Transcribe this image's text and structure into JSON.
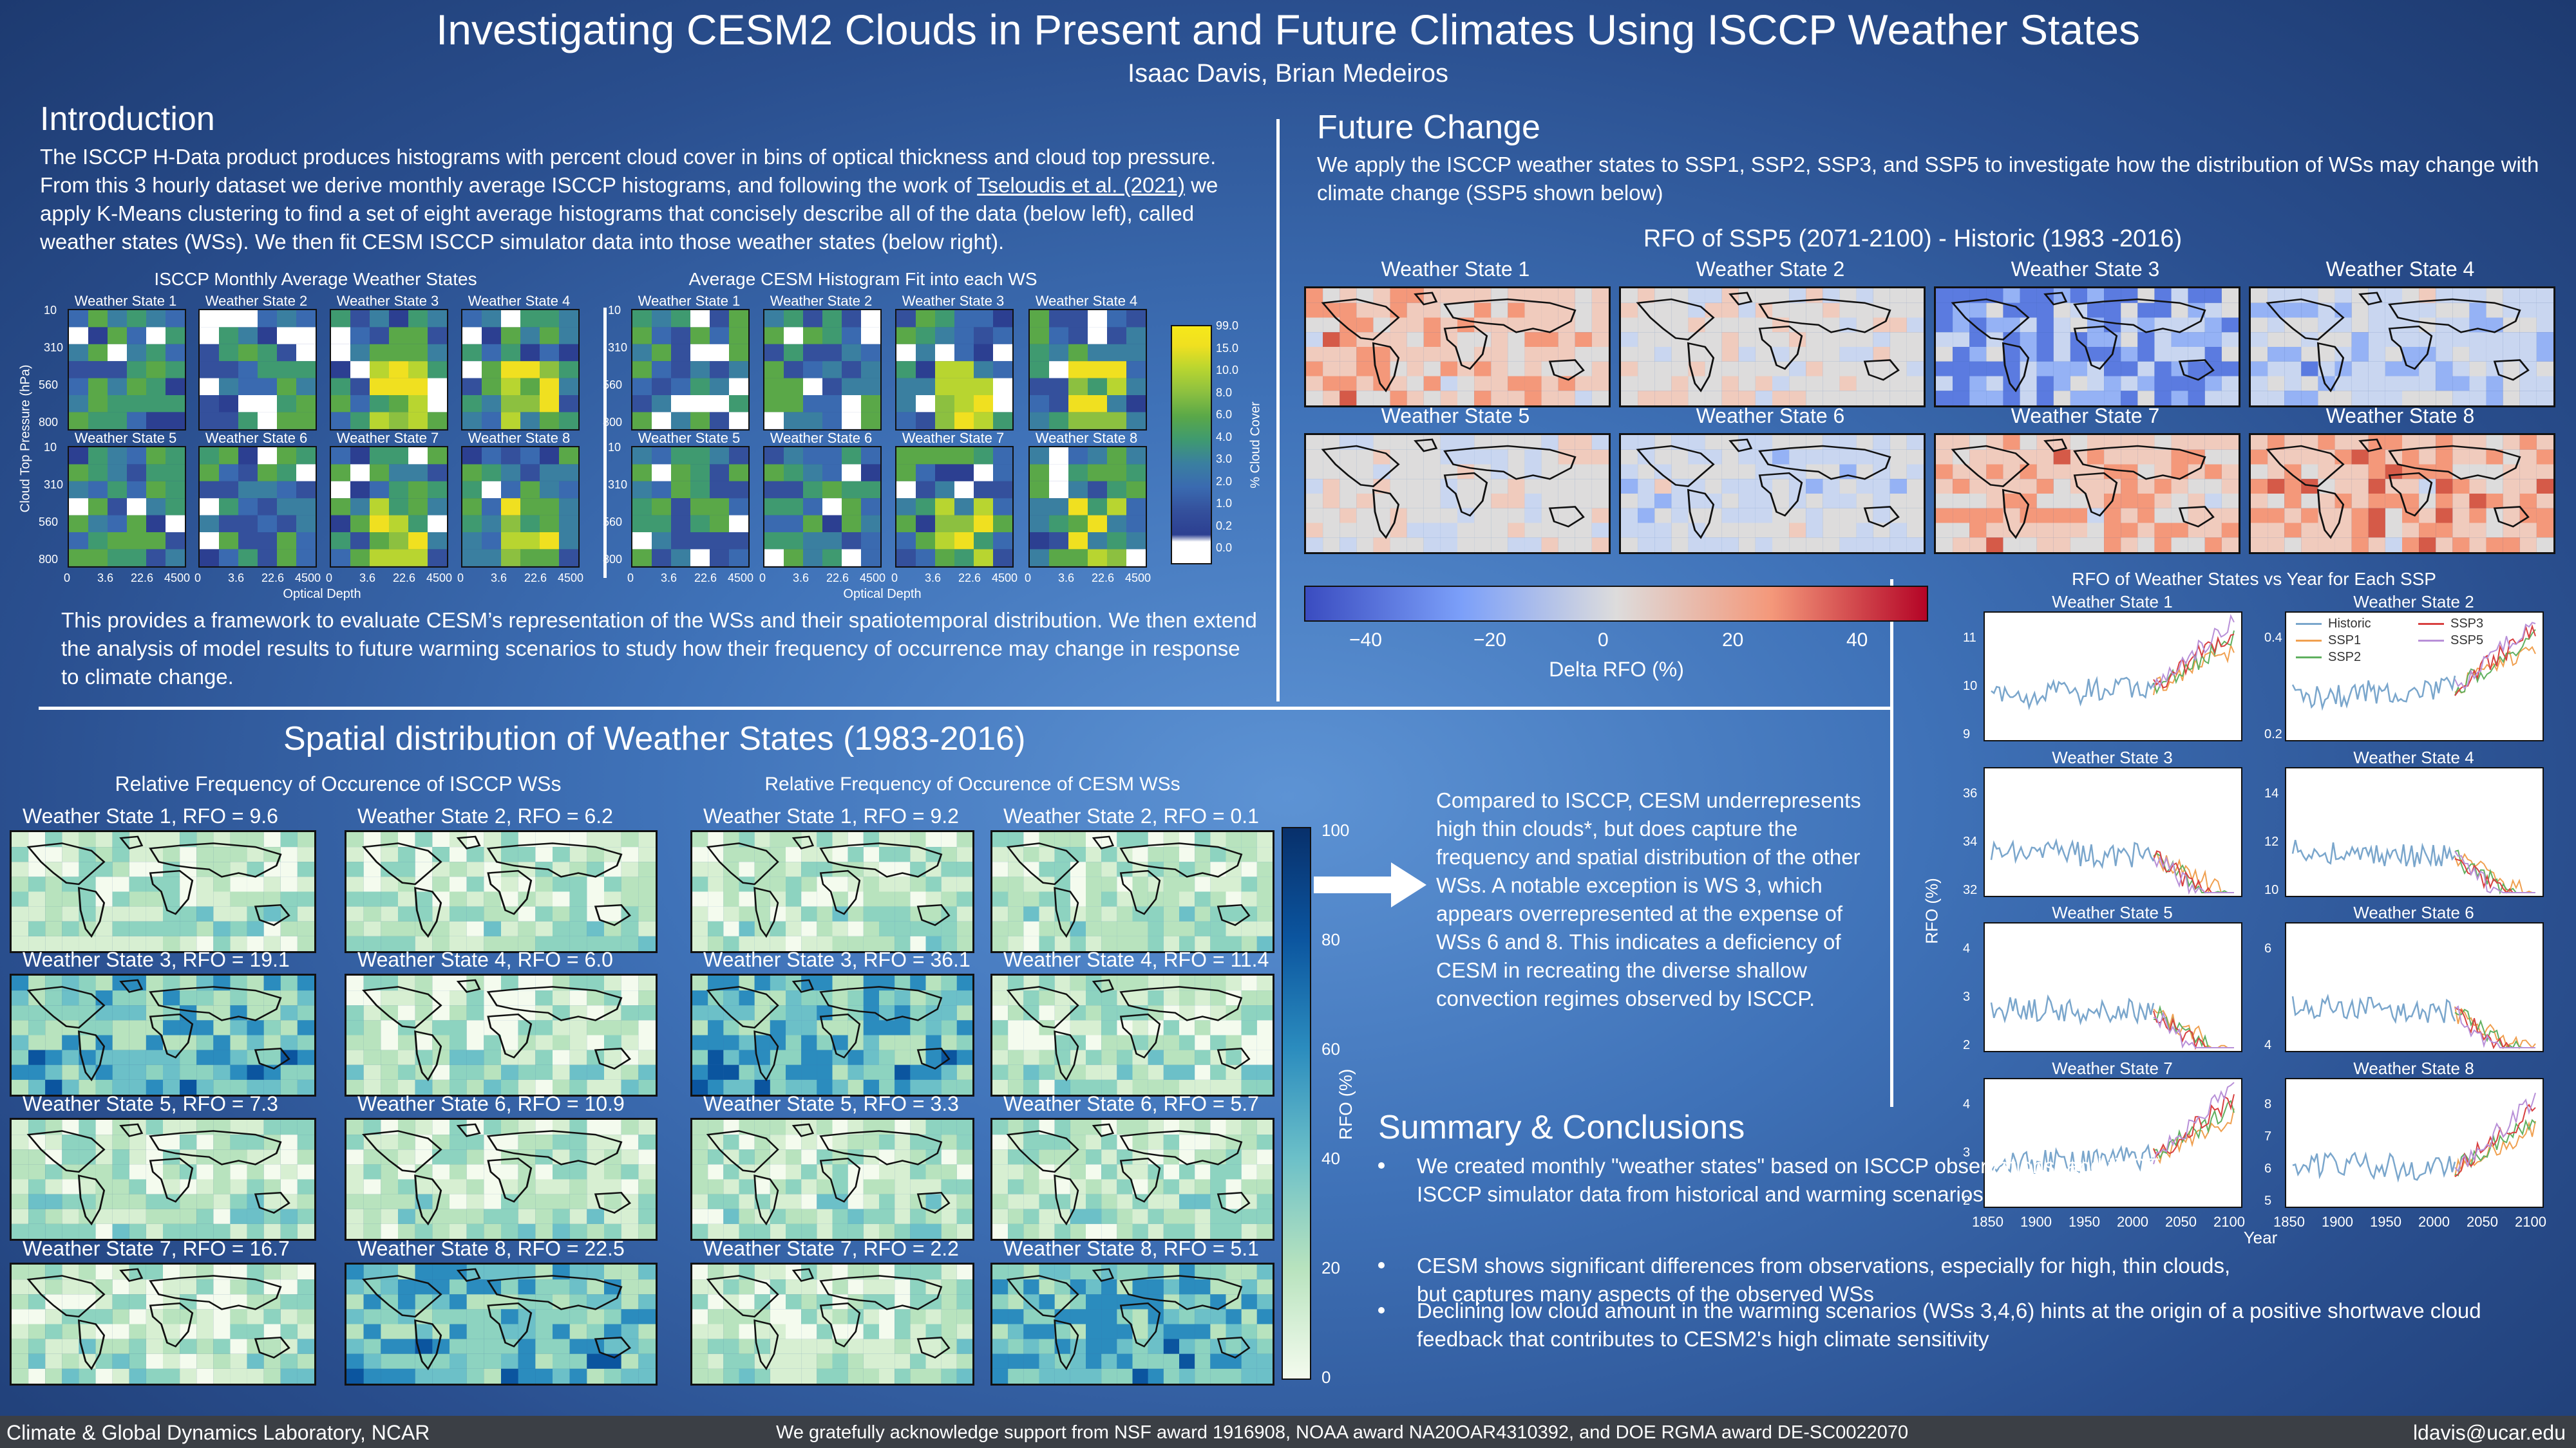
{
  "header": {
    "title": "Investigating CESM2 Clouds in Present and Future Climates Using ISCCP Weather States",
    "authors": "Isaac Davis, Brian Medeiros"
  },
  "intro": {
    "heading": "Introduction",
    "p1_a": "The ISCCP H-Data product produces histograms with percent cloud cover in bins of optical thickness and cloud top pressure. From this 3 hourly dataset we derive monthly average ISCCP histograms, and following the work of ",
    "p1_link": "Tseloudis et al. (2021)",
    "p1_b": " we apply K-Means clustering to find a set of eight average histograms that concisely describe all of the data (below left), called weather states (WSs). We then fit CESM ISCCP simulator data into those weather states (below right).",
    "fig_left_title": "ISCCP Monthly Average Weather States",
    "fig_right_title": "Average CESM Histogram Fit into each WS",
    "ylabel": "Cloud Top Pressure (hPa)",
    "xlabel_left": "Optical Depth",
    "xlabel_right": "Optical Depth",
    "colorbar_label": "% Cloud Cover",
    "colorbar_ticks": [
      "99.0",
      "15.0",
      "10.0",
      "8.0",
      "6.0",
      "4.0",
      "3.0",
      "2.0",
      "1.0",
      "0.2",
      "0.0"
    ],
    "y_ticks": [
      "10",
      "310",
      "560",
      "800"
    ],
    "x_ticks": [
      "0",
      "3.6",
      "22.6",
      "4500"
    ],
    "p2": "This provides a framework to evaluate CESM’s representation of the WSs and their spatiotemporal distribution. We then extend the analysis of model results to future warming scenarios to study how their frequency of occurrence may change in response to climate change."
  },
  "ws_names": [
    "Weather State 1",
    "Weather State 2",
    "Weather State 3",
    "Weather State 4",
    "Weather State 5",
    "Weather State 6",
    "Weather State 7",
    "Weather State 8"
  ],
  "spatial": {
    "heading": "Spatial distribution of Weather States (1983-2016)",
    "isccp_title": "Relative Frequency of Occurence of ISCCP WSs",
    "cesm_title": "Relative Frequency of Occurence of CESM WSs",
    "isccp_labels": [
      "Weather State 1, RFO = 9.6",
      "Weather State 2, RFO = 6.2",
      "Weather State 3, RFO = 19.1",
      "Weather State 4, RFO = 6.0",
      "Weather State 5, RFO = 7.3",
      "Weather State 6, RFO = 10.9",
      "Weather State 7, RFO = 16.7",
      "Weather State 8, RFO = 22.5"
    ],
    "cesm_labels": [
      "Weather State 1, RFO = 9.2",
      "Weather State 2, RFO = 0.1",
      "Weather State 3, RFO = 36.1",
      "Weather State 4, RFO = 11.4",
      "Weather State 5, RFO = 3.3",
      "Weather State 6, RFO = 5.7",
      "Weather State 7, RFO = 2.2",
      "Weather State 8, RFO = 5.1"
    ],
    "colorbar_label": "RFO (%)",
    "colorbar_ticks": [
      "100",
      "80",
      "60",
      "40",
      "20",
      "0"
    ],
    "comparison": "Compared to ISCCP, CESM underrepresents high thin clouds*, but does capture the frequency and spatial distribution of the other WSs. A notable exception is WS 3, which appears overrepresented at the expense of WSs 6 and 8. This indicates a deficiency of CESM in recreating the diverse shallow convection regimes observed by ISCCP."
  },
  "future": {
    "heading": "Future Change",
    "text": "We apply the ISCCP weather states to SSP1, SSP2, SSP3, and SSP5 to investigate how the distribution of WSs may change with climate change (SSP5 shown below)",
    "map_title": "RFO of SSP5 (2071-2100) - Historic (1983 -2016)",
    "colorbar_label": "Delta RFO (%)",
    "colorbar_ticks": [
      "−40",
      "−20",
      "0",
      "20",
      "40"
    ]
  },
  "timeseries": {
    "title": "RFO of Weather States vs Year for Each SSP",
    "ylabel": "RFO (%)",
    "xlabel": "Year",
    "x_ticks": [
      "1850",
      "1900",
      "1950",
      "2000",
      "2050",
      "2100"
    ],
    "y_ticks": [
      [
        "11",
        "10",
        "9"
      ],
      [
        "0.4",
        "0.2"
      ],
      [
        "36",
        "34",
        "32"
      ],
      [
        "14",
        "12",
        "10"
      ],
      [
        "4",
        "3",
        "2"
      ],
      [
        "6",
        "4"
      ],
      [
        "4",
        "3",
        "2"
      ],
      [
        "8",
        "7",
        "6",
        "5"
      ]
    ],
    "legend": [
      "Historic",
      "SSP1",
      "SSP2",
      "SSP3",
      "SSP5"
    ],
    "colors": {
      "Historic": "#7aa6cc",
      "SSP1": "#f0a050",
      "SSP2": "#60b060",
      "SSP3": "#d84040",
      "SSP5": "#b890d8"
    }
  },
  "summary": {
    "heading": "Summary & Conclusions",
    "bullets": [
      "We created monthly \"weather states\" based on ISCCP observations, and fit CESM ISCCP simulator data from historical and warming scenarios into those WSs",
      "CESM shows significant differences from observations, especially for high, thin clouds, but captures many aspects of the observed WSs",
      "Declining low cloud amount in the warming scenarios (WSs 3,4,6) hints at the origin of a positive shortwave cloud feedback that contributes to CESM2's high climate sensitivity"
    ]
  },
  "footer": {
    "left": "Climate & Global Dynamics Laboratory, NCAR",
    "center": "We gratefully acknowledge support from NSF award 1916908, NOAA award NA20OAR4310392, and DOE RGMA award DE-SC0022070",
    "right": "ldavis@ucar.edu"
  }
}
